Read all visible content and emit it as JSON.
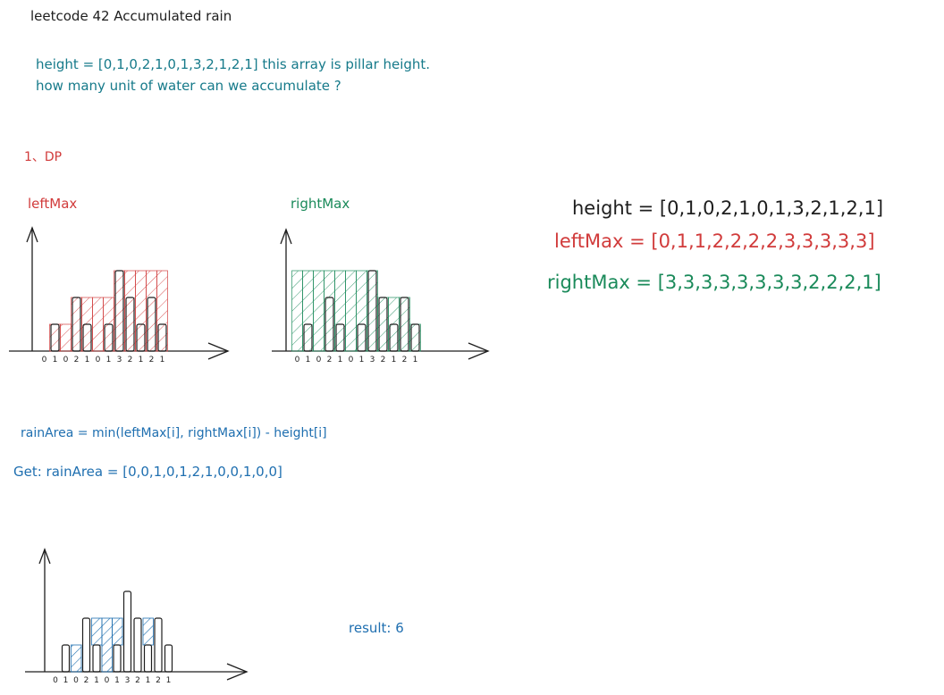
{
  "title": "leetcode 42    Accumulated rain",
  "description": {
    "line1": "height = [0,1,0,2,1,0,1,3,2,1,2,1]   this array is pillar height.",
    "line2": "how many unit of water can we accumulate ?"
  },
  "section": "1、DP",
  "left_chart_label": "leftMax",
  "right_chart_label": "rightMax",
  "arrays": {
    "height": "height = [0,1,0,2,1,0,1,3,2,1,2,1]",
    "leftMax": "leftMax = [0,1,1,2,2,2,2,3,3,3,3,3]",
    "rightMax": "rightMax = [3,3,3,3,3,3,3,3,2,2,2,1]"
  },
  "formula": "rainArea = min(leftMax[i], rightMax[i]) - height[i]",
  "get": "Get: rainArea = [0,0,1,0,1,2,1,0,0,1,0,0]",
  "result": "result: 6",
  "colors": {
    "ink": "#1e1e1e",
    "red": "#d13b3b",
    "green": "#1a8a5a",
    "blue": "#1f6fb0",
    "teal": "#167a8a"
  },
  "chart_data": [
    {
      "type": "bar",
      "name_label": "leftMax",
      "categories": [
        "0",
        "1",
        "0",
        "2",
        "1",
        "0",
        "1",
        "3",
        "2",
        "1",
        "2",
        "1"
      ],
      "values": [
        0,
        1,
        0,
        2,
        1,
        0,
        1,
        3,
        2,
        1,
        2,
        1
      ],
      "overlay": [
        0,
        1,
        1,
        2,
        2,
        2,
        2,
        3,
        3,
        3,
        3,
        3
      ],
      "overlay_color": "#d13b3b"
    },
    {
      "type": "bar",
      "name_label": "rightMax",
      "categories": [
        "0",
        "1",
        "0",
        "2",
        "1",
        "0",
        "1",
        "3",
        "2",
        "1",
        "2",
        "1"
      ],
      "values": [
        0,
        1,
        0,
        2,
        1,
        0,
        1,
        3,
        2,
        1,
        2,
        1
      ],
      "overlay": [
        3,
        3,
        3,
        3,
        3,
        3,
        3,
        3,
        2,
        2,
        2,
        1
      ],
      "overlay_color": "#1a8a5a"
    },
    {
      "type": "bar",
      "name_label": "",
      "categories": [
        "0",
        "1",
        "0",
        "2",
        "1",
        "0",
        "1",
        "3",
        "2",
        "1",
        "2",
        "1"
      ],
      "values": [
        0,
        1,
        0,
        2,
        1,
        0,
        1,
        3,
        2,
        1,
        2,
        1
      ],
      "water": [
        0,
        0,
        1,
        0,
        1,
        2,
        1,
        0,
        0,
        1,
        0,
        0
      ],
      "overlay_color": "#1f6fb0"
    }
  ]
}
